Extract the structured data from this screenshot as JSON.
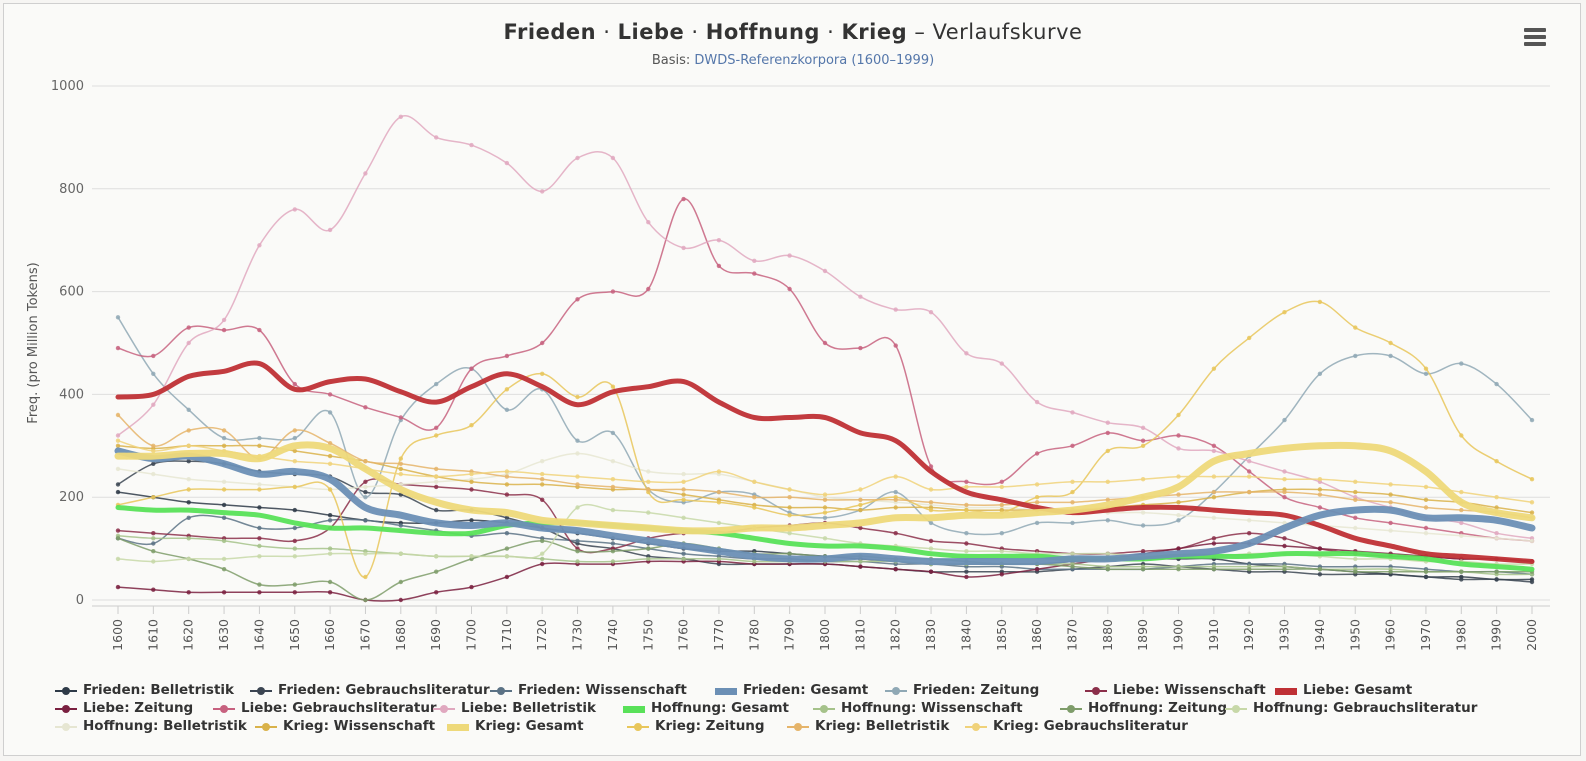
{
  "title": {
    "terms": [
      "Frieden",
      "Liebe",
      "Hoffnung",
      "Krieg"
    ],
    "separator": "·",
    "suffix": "– Verlaufskurve"
  },
  "subtitle": {
    "prefix": "Basis:",
    "source": "DWDS-Referenzkorpora (1600–1999)"
  },
  "menu_icon": "hamburger-menu-icon",
  "chart_data": {
    "type": "line",
    "ylabel": "Freq. (pro Million Tokens)",
    "xlabel": "",
    "ylim": [
      0,
      1000
    ],
    "yticks": [
      0,
      200,
      400,
      600,
      800,
      1000
    ],
    "x": [
      1600,
      1610,
      1620,
      1630,
      1640,
      1650,
      1660,
      1670,
      1680,
      1690,
      1700,
      1710,
      1720,
      1730,
      1740,
      1750,
      1760,
      1770,
      1780,
      1790,
      1800,
      1810,
      1820,
      1830,
      1840,
      1850,
      1860,
      1870,
      1880,
      1890,
      1900,
      1910,
      1920,
      1930,
      1940,
      1950,
      1960,
      1970,
      1980,
      1990,
      2000
    ],
    "grid": true,
    "legend_position": "bottom",
    "series": [
      {
        "name": "Frieden: Belletristik",
        "color": "#2e3a48",
        "width": 1.5,
        "values": [
          210,
          200,
          190,
          185,
          180,
          175,
          165,
          155,
          150,
          150,
          155,
          150,
          140,
          130,
          120,
          110,
          100,
          95,
          95,
          90,
          85,
          80,
          75,
          70,
          70,
          70,
          70,
          75,
          80,
          80,
          80,
          80,
          70,
          65,
          60,
          55,
          50,
          45,
          45,
          40,
          40
        ]
      },
      {
        "name": "Frieden: Gebrauchsliteratur",
        "color": "#3b4552",
        "width": 1.5,
        "values": [
          225,
          265,
          270,
          265,
          250,
          245,
          240,
          210,
          205,
          175,
          175,
          160,
          140,
          110,
          100,
          85,
          80,
          70,
          70,
          70,
          70,
          65,
          60,
          55,
          55,
          55,
          55,
          60,
          65,
          70,
          65,
          60,
          55,
          55,
          50,
          50,
          50,
          45,
          40,
          40,
          35
        ]
      },
      {
        "name": "Frieden: Wissenschaft",
        "color": "#5b7285",
        "width": 1.5,
        "values": [
          120,
          110,
          160,
          160,
          140,
          140,
          155,
          155,
          145,
          135,
          125,
          130,
          120,
          115,
          110,
          100,
          90,
          85,
          80,
          80,
          75,
          75,
          70,
          70,
          65,
          65,
          60,
          60,
          60,
          60,
          65,
          70,
          70,
          70,
          65,
          65,
          65,
          60,
          55,
          55,
          50
        ]
      },
      {
        "name": "Frieden: Gesamt",
        "color": "#6b8fb5",
        "width": 7,
        "values": [
          290,
          275,
          280,
          265,
          245,
          250,
          235,
          180,
          165,
          150,
          145,
          150,
          140,
          135,
          125,
          115,
          105,
          95,
          85,
          80,
          80,
          85,
          80,
          75,
          75,
          75,
          75,
          80,
          80,
          85,
          90,
          95,
          110,
          140,
          165,
          175,
          175,
          160,
          160,
          155,
          140
        ]
      },
      {
        "name": "Frieden: Zeitung",
        "color": "#8fa8b5",
        "width": 1.5,
        "values": [
          550,
          440,
          370,
          315,
          315,
          315,
          365,
          200,
          350,
          420,
          450,
          370,
          410,
          310,
          325,
          215,
          190,
          210,
          205,
          170,
          160,
          175,
          210,
          150,
          130,
          130,
          150,
          150,
          155,
          145,
          155,
          210,
          280,
          350,
          440,
          475,
          475,
          440,
          460,
          420,
          350
        ]
      },
      {
        "name": "Liebe: Wissenschaft",
        "color": "#8b2f4a",
        "width": 1.5,
        "values": [
          135,
          130,
          125,
          120,
          120,
          115,
          140,
          230,
          225,
          220,
          215,
          205,
          195,
          100,
          100,
          120,
          130,
          130,
          140,
          145,
          150,
          140,
          130,
          115,
          110,
          100,
          95,
          90,
          90,
          95,
          100,
          120,
          130,
          120,
          100,
          90,
          85,
          85,
          80,
          80,
          75
        ]
      },
      {
        "name": "Liebe: Gesamt",
        "color": "#bf3035",
        "width": 5,
        "values": [
          395,
          400,
          435,
          445,
          460,
          410,
          425,
          430,
          405,
          385,
          415,
          440,
          415,
          380,
          405,
          415,
          425,
          385,
          355,
          355,
          355,
          325,
          310,
          250,
          210,
          195,
          180,
          170,
          175,
          180,
          180,
          175,
          170,
          165,
          145,
          120,
          105,
          90,
          85,
          80,
          75
        ]
      },
      {
        "name": "Liebe: Zeitung",
        "color": "#7a2040",
        "width": 1.5,
        "values": [
          25,
          20,
          15,
          15,
          15,
          15,
          15,
          0,
          0,
          15,
          25,
          45,
          70,
          70,
          70,
          75,
          75,
          75,
          70,
          70,
          70,
          65,
          60,
          55,
          45,
          50,
          60,
          70,
          80,
          90,
          100,
          110,
          110,
          105,
          100,
          95,
          90,
          85,
          80,
          80,
          75
        ]
      },
      {
        "name": "Liebe: Gebrauchsliteratur",
        "color": "#c7617f",
        "width": 1.5,
        "values": [
          490,
          475,
          530,
          525,
          525,
          420,
          400,
          375,
          355,
          335,
          450,
          475,
          500,
          585,
          600,
          605,
          780,
          650,
          635,
          605,
          500,
          490,
          495,
          260,
          230,
          230,
          285,
          300,
          325,
          310,
          320,
          300,
          250,
          200,
          180,
          160,
          150,
          140,
          130,
          120,
          115
        ]
      },
      {
        "name": "Liebe: Belletristik",
        "color": "#e0a8bf",
        "width": 1.5,
        "values": [
          320,
          380,
          500,
          545,
          690,
          760,
          720,
          830,
          940,
          900,
          885,
          850,
          795,
          860,
          860,
          735,
          685,
          700,
          660,
          670,
          640,
          590,
          565,
          560,
          480,
          460,
          385,
          365,
          345,
          335,
          295,
          290,
          270,
          250,
          230,
          200,
          180,
          160,
          150,
          130,
          120
        ]
      },
      {
        "name": "Hoffnung: Gesamt",
        "color": "#59e159",
        "width": 5,
        "values": [
          180,
          175,
          175,
          170,
          165,
          150,
          140,
          140,
          135,
          130,
          130,
          145,
          150,
          150,
          145,
          140,
          135,
          130,
          120,
          110,
          105,
          105,
          100,
          90,
          85,
          85,
          85,
          80,
          80,
          80,
          85,
          85,
          85,
          90,
          90,
          90,
          85,
          80,
          70,
          65,
          60
        ]
      },
      {
        "name": "Hoffnung: Wissenschaft",
        "color": "#a5c28a",
        "width": 1.5,
        "values": [
          125,
          120,
          120,
          115,
          105,
          100,
          100,
          95,
          90,
          85,
          85,
          85,
          80,
          75,
          75,
          80,
          80,
          80,
          75,
          75,
          75,
          75,
          75,
          70,
          70,
          70,
          70,
          70,
          65,
          65,
          65,
          65,
          65,
          65,
          60,
          60,
          60,
          55,
          55,
          50,
          50
        ]
      },
      {
        "name": "Hoffnung: Zeitung",
        "color": "#7e9c6a",
        "width": 1.5,
        "values": [
          120,
          95,
          80,
          60,
          30,
          30,
          35,
          0,
          35,
          55,
          80,
          100,
          115,
          95,
          95,
          100,
          110,
          100,
          90,
          90,
          85,
          85,
          80,
          80,
          75,
          70,
          70,
          65,
          60,
          60,
          60,
          60,
          60,
          60,
          60,
          55,
          55,
          55,
          55,
          55,
          55
        ]
      },
      {
        "name": "Hoffnung: Gebrauchsliteratur",
        "color": "#c7d8a8",
        "width": 1.5,
        "values": [
          80,
          75,
          80,
          80,
          85,
          85,
          90,
          90,
          90,
          85,
          85,
          85,
          90,
          180,
          175,
          170,
          160,
          150,
          140,
          130,
          120,
          110,
          105,
          100,
          95,
          95,
          90,
          90,
          90,
          85,
          85,
          85,
          90,
          90,
          85,
          80,
          80,
          75,
          75,
          70,
          70
        ]
      },
      {
        "name": "Hoffnung: Belletristik",
        "color": "#e6e6d2",
        "width": 1.5,
        "values": [
          255,
          245,
          235,
          230,
          225,
          220,
          215,
          220,
          225,
          230,
          235,
          245,
          270,
          285,
          270,
          250,
          245,
          245,
          230,
          215,
          200,
          195,
          190,
          185,
          180,
          180,
          175,
          175,
          170,
          170,
          165,
          160,
          155,
          150,
          145,
          140,
          135,
          130,
          125,
          120,
          115
        ]
      },
      {
        "name": "Krieg: Wissenschaft",
        "color": "#d9b24a",
        "width": 1.5,
        "values": [
          300,
          295,
          300,
          300,
          300,
          290,
          280,
          270,
          255,
          240,
          230,
          225,
          225,
          220,
          215,
          215,
          205,
          195,
          185,
          180,
          180,
          175,
          180,
          180,
          175,
          175,
          175,
          175,
          180,
          185,
          190,
          200,
          210,
          215,
          215,
          210,
          205,
          195,
          190,
          180,
          170
        ]
      },
      {
        "name": "Krieg: Gesamt",
        "color": "#eed97a",
        "width": 7,
        "values": [
          280,
          280,
          285,
          285,
          275,
          300,
          295,
          255,
          215,
          190,
          175,
          170,
          155,
          150,
          145,
          140,
          135,
          135,
          140,
          140,
          145,
          150,
          160,
          160,
          165,
          165,
          170,
          175,
          185,
          200,
          220,
          270,
          285,
          295,
          300,
          300,
          290,
          250,
          190,
          170,
          160
        ]
      },
      {
        "name": "Krieg: Zeitung",
        "color": "#e8c65a",
        "width": 1.5,
        "values": [
          185,
          200,
          215,
          215,
          215,
          220,
          215,
          45,
          275,
          320,
          340,
          410,
          440,
          395,
          415,
          210,
          195,
          190,
          180,
          165,
          170,
          185,
          200,
          175,
          175,
          170,
          200,
          210,
          290,
          300,
          360,
          450,
          510,
          560,
          580,
          530,
          500,
          450,
          320,
          270,
          235
        ]
      },
      {
        "name": "Krieg: Belletristik",
        "color": "#e5b46a",
        "width": 1.5,
        "values": [
          360,
          300,
          330,
          330,
          275,
          330,
          305,
          270,
          265,
          255,
          250,
          240,
          235,
          225,
          220,
          215,
          215,
          210,
          200,
          200,
          195,
          195,
          195,
          190,
          185,
          185,
          190,
          190,
          195,
          200,
          205,
          210,
          210,
          210,
          205,
          195,
          190,
          180,
          175,
          170,
          160
        ]
      },
      {
        "name": "Krieg: Gebrauchsliteratur",
        "color": "#f0d27a",
        "width": 1.5,
        "values": [
          310,
          290,
          300,
          290,
          280,
          270,
          265,
          255,
          245,
          240,
          245,
          250,
          245,
          240,
          235,
          230,
          230,
          250,
          230,
          215,
          205,
          215,
          240,
          215,
          220,
          220,
          225,
          230,
          230,
          235,
          240,
          240,
          240,
          235,
          235,
          230,
          225,
          220,
          210,
          200,
          190
        ]
      }
    ]
  }
}
